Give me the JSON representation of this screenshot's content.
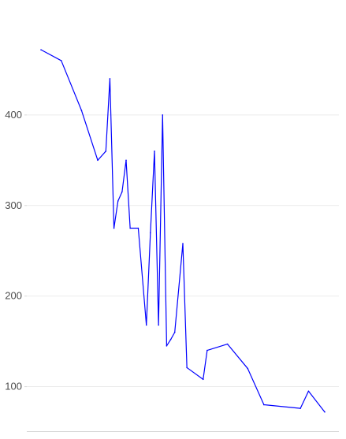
{
  "chart_data": {
    "type": "line",
    "title": "",
    "xlabel": "",
    "ylabel": "",
    "grid": true,
    "x_axis_labels_visible": false,
    "ylim": [
      50,
      520
    ],
    "yticks": [
      100,
      200,
      300,
      400
    ],
    "ytick_labels": [
      "100",
      "200",
      "300",
      "400"
    ],
    "series": [
      {
        "color": "#0000ff",
        "x": [
          0,
          5,
          10,
          14,
          16,
          17,
          18,
          19,
          20,
          21,
          22,
          24,
          26,
          27,
          28,
          29,
          30,
          31,
          32,
          33,
          35,
          36,
          40,
          41,
          46,
          51,
          55,
          64,
          66,
          70
        ],
        "y": [
          472,
          460,
          405,
          350,
          360,
          440,
          275,
          305,
          315,
          350,
          275,
          275,
          168,
          270,
          360,
          168,
          400,
          145,
          152,
          160,
          258,
          121,
          108,
          140,
          147,
          120,
          80,
          76,
          95,
          72
        ]
      }
    ]
  }
}
